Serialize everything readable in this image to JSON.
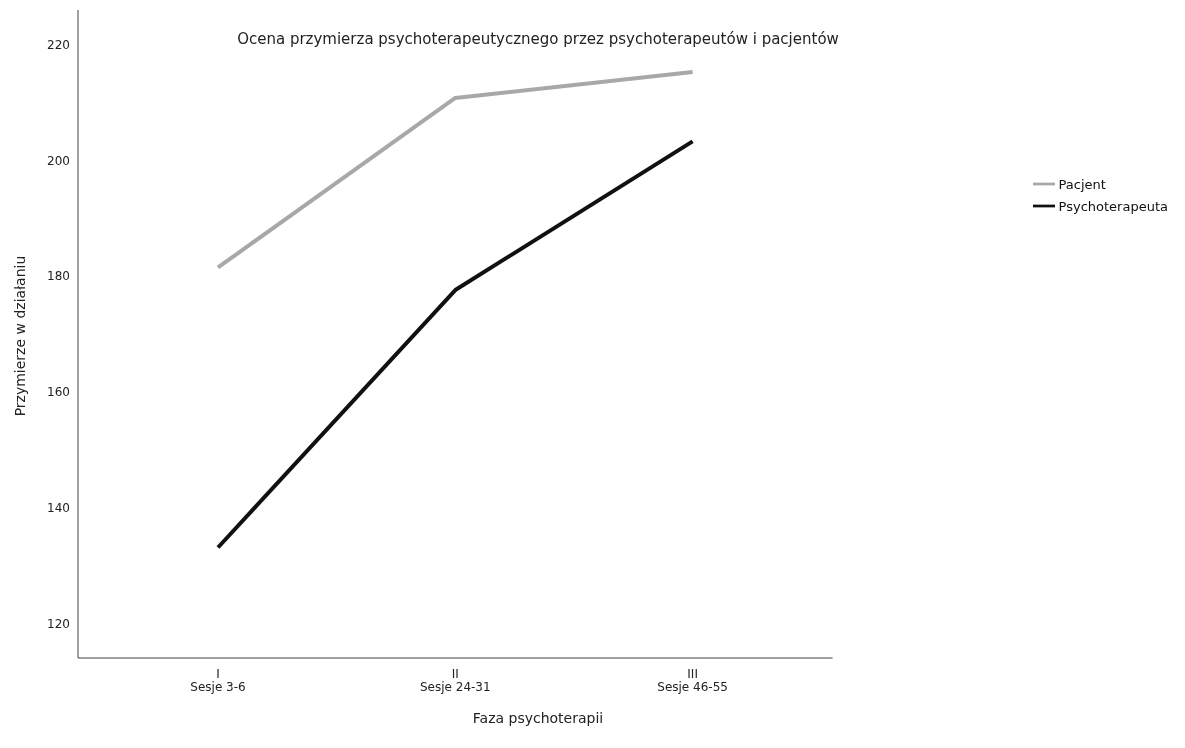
{
  "chart_data": {
    "type": "line",
    "title": "Ocena przymierza psychoterapeutycznego przez psychoterapeutów i pacjentów",
    "xlabel": "Faza psychoterapii",
    "ylabel": "Przymierze w działaniu",
    "categories": [
      "I\nSesje 3-6",
      "II\nSesje 24-31",
      "III\nSesje 46-55"
    ],
    "series": [
      {
        "name": "Pacjent",
        "color": "#a8a8a8",
        "values": [
          181.5,
          210.8,
          215.3
        ]
      },
      {
        "name": "Psychoterapeuta",
        "color": "#111111",
        "values": [
          133.1,
          177.6,
          203.3
        ]
      }
    ],
    "ylim": [
      114,
      226
    ],
    "yticks": [
      120,
      140,
      160,
      180,
      200,
      220
    ],
    "grid": false,
    "legend": "right",
    "marker": "none",
    "line_style": "solid"
  }
}
